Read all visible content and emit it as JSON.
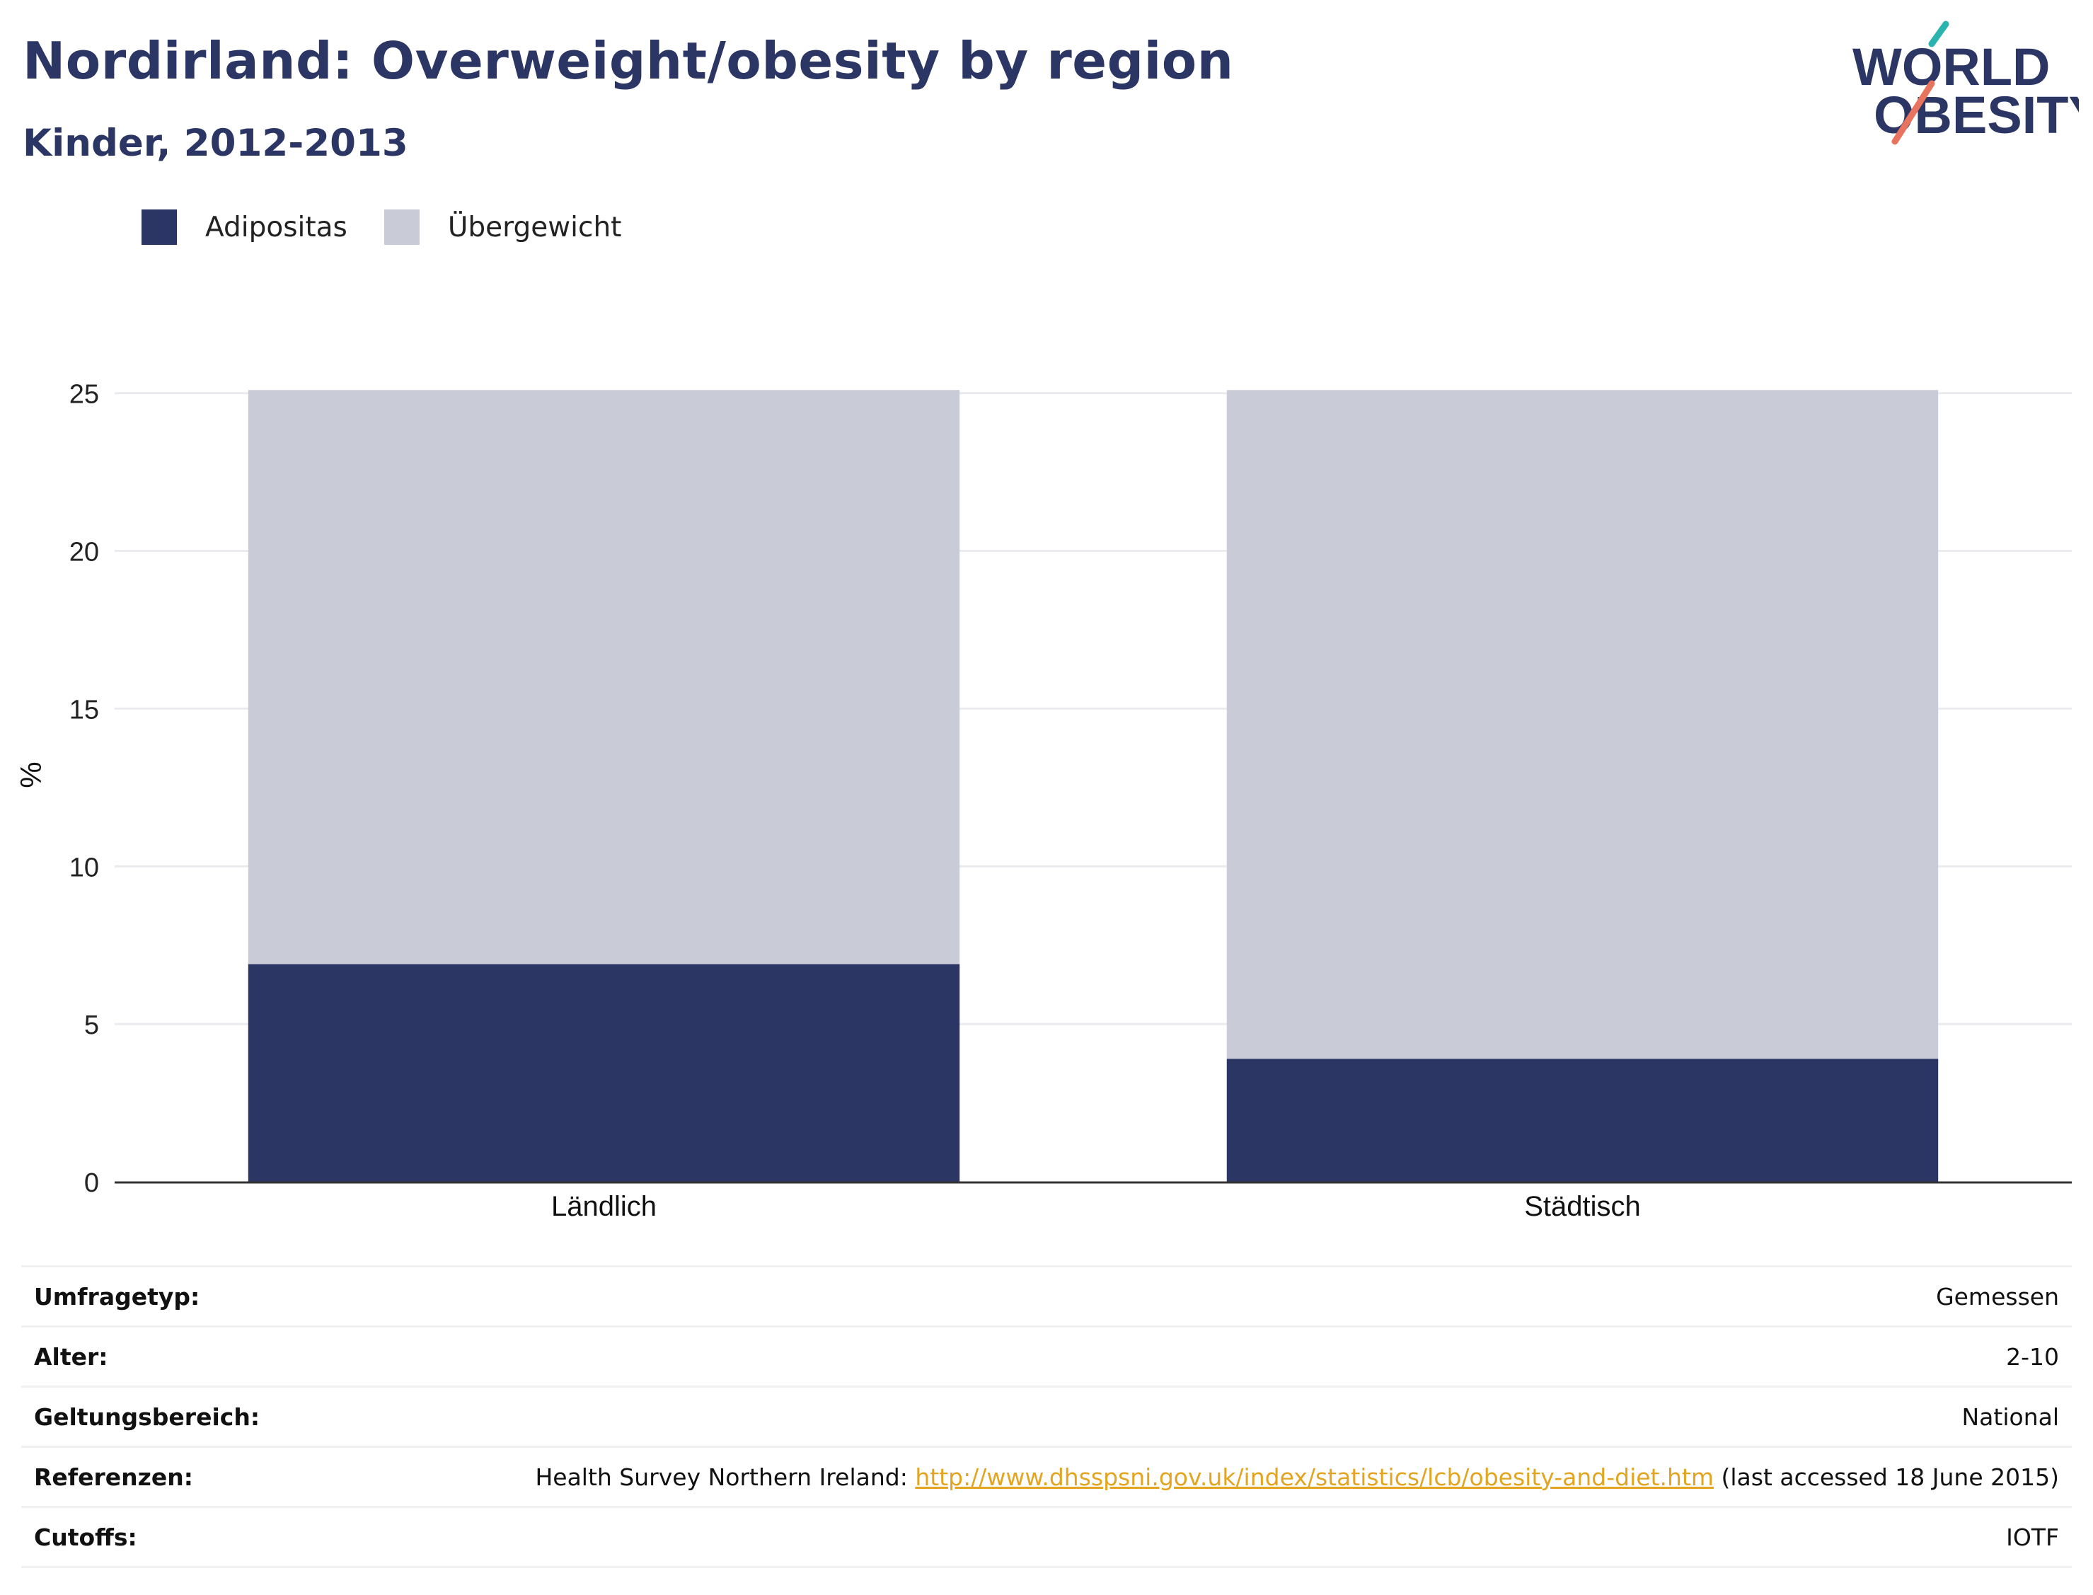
{
  "title": "Nordirland: Overweight/obesity by region",
  "subtitle": "Kinder, 2012-2013",
  "logo": {
    "line1": "WORLD",
    "line2": "OBESITY",
    "colors": {
      "text": "#2b3664",
      "slash_top": "#2bb3b0",
      "slash_bottom": "#e8735f"
    }
  },
  "legend": [
    {
      "label": "Adipositas",
      "color": "#2b3664"
    },
    {
      "label": "Übergewicht",
      "color": "#c9ccd7"
    }
  ],
  "chart_data": {
    "type": "bar",
    "stacked": true,
    "categories": [
      "Ländlich",
      "Städtisch"
    ],
    "series": [
      {
        "name": "Adipositas",
        "color": "#2b3664",
        "values": [
          6.9,
          3.9
        ]
      },
      {
        "name": "Übergewicht",
        "color": "#c9ccd7",
        "values": [
          18.2,
          21.2
        ]
      }
    ],
    "totals": [
      25.1,
      25.1
    ],
    "ylabel": "%",
    "xlabel": "",
    "ylim": [
      0,
      25.5
    ],
    "yticks": [
      0,
      5,
      10,
      15,
      20,
      25
    ],
    "grid": true,
    "legend_position": "top-left"
  },
  "info": {
    "rows": [
      {
        "key": "Umfragetyp:",
        "value": "Gemessen"
      },
      {
        "key": "Alter:",
        "value": "2-10"
      },
      {
        "key": "Geltungsbereich:",
        "value": "National"
      },
      {
        "key": "Referenzen:",
        "value_prefix": "Health Survey Northern Ireland: ",
        "link": "http://www.dhsspsni.gov.uk/index/statistics/lcb/obesity-and-diet.htm",
        "value_suffix": " (last accessed 18 June 2015)"
      },
      {
        "key": "Cutoffs:",
        "value": "IOTF"
      }
    ]
  }
}
